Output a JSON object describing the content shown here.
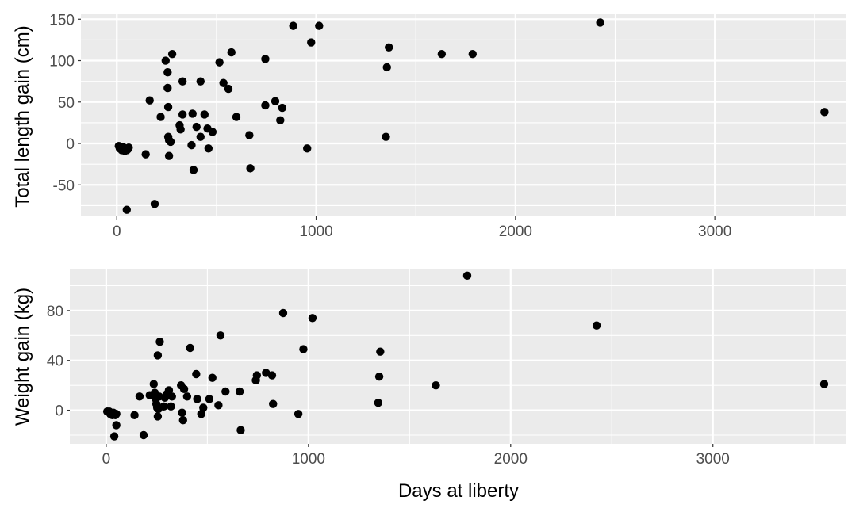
{
  "chart_data": [
    {
      "type": "scatter",
      "title": "",
      "xlabel": "",
      "ylabel": "Total length gain (cm)",
      "xlim": [
        -180,
        3660
      ],
      "ylim": [
        -88,
        156
      ],
      "x_ticks": [
        0,
        1000,
        2000,
        3000
      ],
      "x_tick_labels": [
        "0",
        "1000",
        "2000",
        "3000"
      ],
      "y_ticks": [
        -50,
        0,
        50,
        100,
        150
      ],
      "y_tick_labels": [
        "-50",
        "0",
        "50",
        "100",
        "150"
      ],
      "grid": true,
      "points": [
        [
          10,
          -3
        ],
        [
          15,
          -6
        ],
        [
          20,
          -5
        ],
        [
          25,
          -8
        ],
        [
          30,
          -4
        ],
        [
          35,
          -7
        ],
        [
          40,
          -9
        ],
        [
          45,
          -6
        ],
        [
          50,
          -8
        ],
        [
          55,
          -7
        ],
        [
          60,
          -5
        ],
        [
          50,
          -80
        ],
        [
          145,
          -13
        ],
        [
          165,
          52
        ],
        [
          190,
          -73
        ],
        [
          220,
          32
        ],
        [
          245,
          100
        ],
        [
          255,
          86
        ],
        [
          255,
          67
        ],
        [
          258,
          44
        ],
        [
          258,
          8
        ],
        [
          262,
          4
        ],
        [
          262,
          -15
        ],
        [
          270,
          2
        ],
        [
          278,
          108
        ],
        [
          315,
          22
        ],
        [
          320,
          17
        ],
        [
          330,
          35
        ],
        [
          330,
          75
        ],
        [
          375,
          -2
        ],
        [
          380,
          36
        ],
        [
          385,
          -32
        ],
        [
          400,
          20
        ],
        [
          420,
          75
        ],
        [
          420,
          8
        ],
        [
          440,
          35
        ],
        [
          455,
          18
        ],
        [
          460,
          -6
        ],
        [
          480,
          14
        ],
        [
          515,
          98
        ],
        [
          535,
          73
        ],
        [
          560,
          66
        ],
        [
          575,
          110
        ],
        [
          600,
          32
        ],
        [
          665,
          10
        ],
        [
          670,
          -30
        ],
        [
          745,
          102
        ],
        [
          745,
          46
        ],
        [
          795,
          51
        ],
        [
          820,
          28
        ],
        [
          830,
          43
        ],
        [
          885,
          142
        ],
        [
          955,
          -6
        ],
        [
          975,
          122
        ],
        [
          1015,
          142
        ],
        [
          1350,
          8
        ],
        [
          1355,
          92
        ],
        [
          1365,
          116
        ],
        [
          1630,
          108
        ],
        [
          1785,
          108
        ],
        [
          2425,
          146
        ],
        [
          3550,
          38
        ]
      ]
    },
    {
      "type": "scatter",
      "title": "",
      "xlabel": "Days at liberty",
      "ylabel": "Weight gain (kg)",
      "xlim": [
        -180,
        3660
      ],
      "ylim": [
        -27,
        113
      ],
      "x_ticks": [
        0,
        1000,
        2000,
        3000
      ],
      "x_tick_labels": [
        "0",
        "1000",
        "2000",
        "3000"
      ],
      "y_ticks": [
        0,
        40,
        80
      ],
      "y_tick_labels": [
        "0",
        "40",
        "80"
      ],
      "grid": true,
      "points": [
        [
          5,
          -1
        ],
        [
          15,
          -1
        ],
        [
          20,
          -3
        ],
        [
          30,
          -4
        ],
        [
          35,
          -2
        ],
        [
          45,
          -4
        ],
        [
          50,
          -3
        ],
        [
          40,
          -21
        ],
        [
          50,
          -12
        ],
        [
          140,
          -4
        ],
        [
          165,
          11
        ],
        [
          185,
          -20
        ],
        [
          215,
          12
        ],
        [
          235,
          21
        ],
        [
          240,
          14
        ],
        [
          245,
          9
        ],
        [
          248,
          5
        ],
        [
          252,
          2
        ],
        [
          255,
          -5
        ],
        [
          258,
          1
        ],
        [
          262,
          11
        ],
        [
          255,
          44
        ],
        [
          265,
          55
        ],
        [
          285,
          3
        ],
        [
          290,
          10
        ],
        [
          300,
          13
        ],
        [
          310,
          16
        ],
        [
          320,
          3
        ],
        [
          325,
          11
        ],
        [
          370,
          20
        ],
        [
          375,
          -2
        ],
        [
          380,
          -8
        ],
        [
          385,
          17
        ],
        [
          400,
          11
        ],
        [
          415,
          50
        ],
        [
          445,
          29
        ],
        [
          450,
          9
        ],
        [
          470,
          -3
        ],
        [
          480,
          2
        ],
        [
          510,
          9
        ],
        [
          525,
          26
        ],
        [
          555,
          4
        ],
        [
          565,
          60
        ],
        [
          590,
          15
        ],
        [
          660,
          15
        ],
        [
          665,
          -16
        ],
        [
          740,
          24
        ],
        [
          745,
          28
        ],
        [
          790,
          30
        ],
        [
          820,
          28
        ],
        [
          825,
          5
        ],
        [
          875,
          78
        ],
        [
          950,
          -3
        ],
        [
          975,
          49
        ],
        [
          1020,
          74
        ],
        [
          1345,
          6
        ],
        [
          1350,
          27
        ],
        [
          1355,
          47
        ],
        [
          1630,
          20
        ],
        [
          1785,
          108
        ],
        [
          2425,
          68
        ],
        [
          3550,
          21
        ]
      ]
    }
  ]
}
